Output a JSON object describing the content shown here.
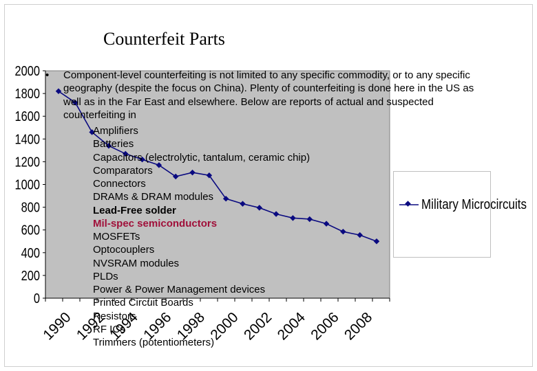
{
  "slide": {
    "title": "Counterfeit Parts",
    "bullet_symbol": "•",
    "bullet_text": "Component-level counterfeiting is not limited to any specific commodity, or to any specific geography (despite the focus on China). Plenty of counterfeiting is done here in the US as well as in the Far East and elsewhere. Below are reports of actual and suspected counterfeiting in",
    "items": [
      {
        "text": "Amplifiers",
        "style": "normal"
      },
      {
        "text": "Batteries",
        "style": "normal"
      },
      {
        "text": "Capacitors (electrolytic, tantalum, ceramic chip)",
        "style": "normal"
      },
      {
        "text": "Comparators",
        "style": "normal"
      },
      {
        "text": "Connectors",
        "style": "normal"
      },
      {
        "text": "DRAMs & DRAM modules",
        "style": "normal"
      },
      {
        "text": "Lead-Free solder",
        "style": "bold"
      },
      {
        "text": "Mil-spec semiconductors",
        "style": "highlight"
      },
      {
        "text": "MOSFETs",
        "style": "normal"
      },
      {
        "text": "Optocouplers",
        "style": "normal"
      },
      {
        "text": "NVSRAM modules",
        "style": "normal"
      },
      {
        "text": "PLDs",
        "style": "normal"
      },
      {
        "text": "Power & Power Management devices",
        "style": "normal"
      },
      {
        "text": "Printed Circuit Boards",
        "style": "normal"
      },
      {
        "text": "Resistors",
        "style": "normal"
      },
      {
        "text": "RF ICs",
        "style": "normal"
      },
      {
        "text": "Trimmers (potentiometers)",
        "style": "normal"
      }
    ]
  },
  "colors": {
    "plot_background": "#c0c0c0",
    "series": "#0a0a80",
    "highlight_text": "#a0103a"
  },
  "chart_data": {
    "type": "line",
    "title": "",
    "xlabel": "",
    "ylabel": "",
    "ylim": [
      0,
      2000
    ],
    "y_ticks": [
      0,
      200,
      400,
      600,
      800,
      1000,
      1200,
      1400,
      1600,
      1800,
      2000
    ],
    "xlim": [
      1990,
      2009
    ],
    "x_tick_labels": [
      "1990",
      "1992",
      "1994",
      "1996",
      "1998",
      "2000",
      "2002",
      "2004",
      "2006",
      "2008"
    ],
    "grid": false,
    "legend_position": "right",
    "series": [
      {
        "name": "Military Microcircuits",
        "x": [
          1990,
          1991,
          1992,
          1993,
          1994,
          1995,
          1996,
          1997,
          1998,
          1999,
          2000,
          2001,
          2002,
          2003,
          2004,
          2005,
          2006,
          2007,
          2008,
          2009
        ],
        "values": [
          1820,
          1720,
          1460,
          1340,
          1270,
          1220,
          1170,
          1070,
          1105,
          1080,
          875,
          830,
          795,
          740,
          705,
          695,
          655,
          585,
          555,
          500
        ]
      }
    ]
  }
}
